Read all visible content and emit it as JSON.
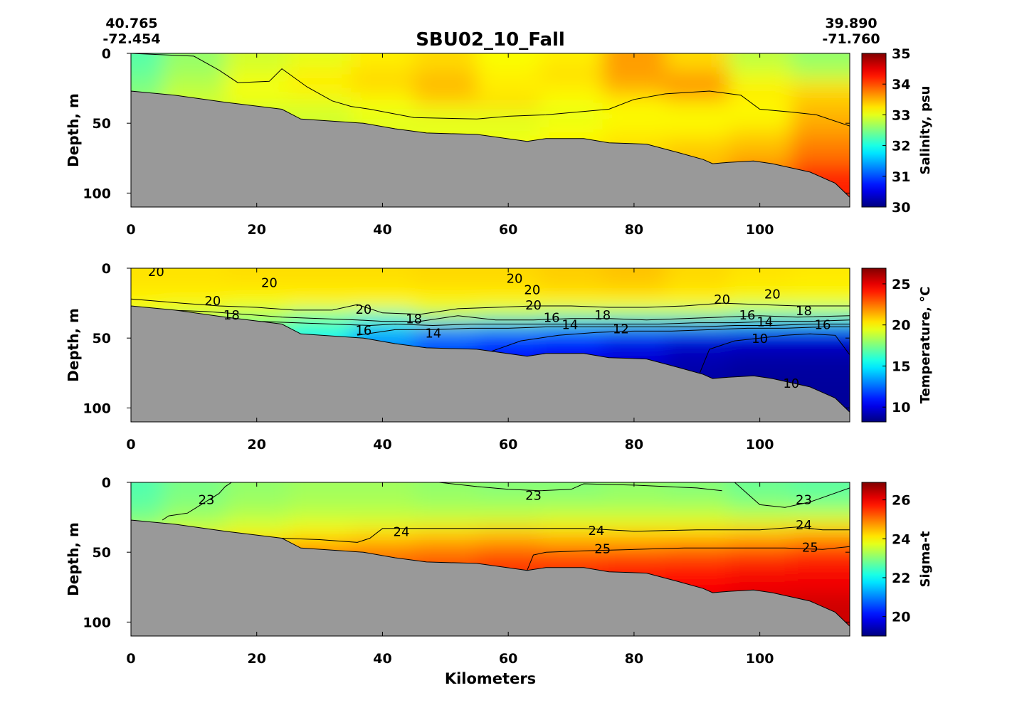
{
  "chart_data": {
    "type": "heatmap",
    "title": "SBU02_10_Fall",
    "start_coord": {
      "lat": "40.765",
      "lon": "-72.454"
    },
    "end_coord": {
      "lat": "39.890",
      "lon": "-71.760"
    },
    "xlabel": "Kilometers",
    "xlim": [
      0,
      114.3
    ],
    "x_ticks": [
      "0",
      "20",
      "40",
      "60",
      "80",
      "100"
    ],
    "bathymetry": {
      "x_km": [
        0,
        7,
        15,
        24,
        27,
        37,
        42,
        47,
        55,
        63,
        66,
        72,
        76,
        82,
        87,
        91,
        92.5,
        95,
        99,
        102,
        108,
        112,
        114.3
      ],
      "depth_m": [
        27,
        30,
        35,
        40,
        47,
        50,
        54,
        57,
        58,
        63,
        61,
        61,
        64,
        65,
        71,
        76,
        79,
        78,
        77,
        79,
        85,
        93,
        103
      ]
    },
    "grid_x_km": [
      0,
      10,
      20,
      30,
      40,
      50,
      60,
      70,
      80,
      90,
      100,
      110
    ],
    "grid_depth_m": [
      5,
      15,
      25,
      35,
      45,
      55,
      70,
      90
    ],
    "panels": [
      {
        "ylabel": "Depth, m",
        "ylim": [
          0,
          110
        ],
        "y_ticks": [
          "0",
          "50",
          "100"
        ],
        "colorbar_label": "Salinity, psu",
        "clim": [
          30,
          35
        ],
        "colorbar_ticks": [
          "30",
          "31",
          "32",
          "33",
          "34",
          "35"
        ],
        "field": [
          [
            32.3,
            32.6,
            32.9,
            33.0,
            33.2,
            33.3,
            33.1,
            33.2,
            33.6,
            33.3,
            32.8,
            32.6
          ],
          [
            32.4,
            32.7,
            33.0,
            33.2,
            33.3,
            33.4,
            33.2,
            33.3,
            33.6,
            33.5,
            33.0,
            32.8
          ],
          [
            32.5,
            32.8,
            33.1,
            33.2,
            33.3,
            33.5,
            33.2,
            33.2,
            33.5,
            33.7,
            33.2,
            33.3
          ],
          [
            32.6,
            32.9,
            33.0,
            33.0,
            33.1,
            33.3,
            33.3,
            33.1,
            33.2,
            33.3,
            33.2,
            33.4
          ],
          [
            32.7,
            32.9,
            32.9,
            32.9,
            33.0,
            33.0,
            33.0,
            33.0,
            33.1,
            33.1,
            33.1,
            33.5
          ],
          [
            32.8,
            32.9,
            32.9,
            32.9,
            33.0,
            33.0,
            33.0,
            33.1,
            33.2,
            33.2,
            33.3,
            33.6
          ],
          [
            32.9,
            33.0,
            33.0,
            33.0,
            33.0,
            33.1,
            33.1,
            33.2,
            33.3,
            33.4,
            33.5,
            33.8
          ],
          [
            33.0,
            33.0,
            33.0,
            33.0,
            33.1,
            33.2,
            33.3,
            33.3,
            33.4,
            33.5,
            33.8,
            34.2
          ]
        ],
        "contour_labels": [],
        "contours": [
          {
            "x": [
              0,
              10,
              14,
              17,
              22,
              24,
              28,
              32,
              35,
              38,
              45,
              55,
              60,
              66,
              76,
              80,
              85,
              92,
              97,
              100,
              105,
              109,
              114.3
            ],
            "d": [
              0,
              2,
              12,
              21,
              20,
              11,
              24,
              34,
              38,
              40,
              46,
              47,
              45,
              44,
              40,
              33,
              29,
              27,
              30,
              40,
              42,
              44,
              52
            ]
          }
        ]
      },
      {
        "ylabel": "Depth, m",
        "ylim": [
          0,
          110
        ],
        "y_ticks": [
          "0",
          "50",
          "100"
        ],
        "colorbar_label": "Temperature, °C",
        "clim": [
          8.2,
          26.9
        ],
        "colorbar_tick_values": [
          10,
          15,
          20,
          25
        ],
        "colorbar_ticks": [
          "10",
          "15",
          "20",
          "25"
        ],
        "field": [
          [
            20.4,
            20.4,
            20.5,
            20.5,
            20.5,
            20.6,
            20.6,
            20.8,
            21.0,
            20.6,
            20.4,
            20.3
          ],
          [
            20.3,
            20.3,
            20.3,
            20.3,
            20.3,
            20.4,
            20.4,
            20.6,
            20.7,
            20.4,
            20.2,
            20.1
          ],
          [
            20.0,
            20.0,
            19.8,
            20.0,
            20.0,
            20.0,
            20.0,
            20.0,
            20.0,
            20.0,
            19.5,
            19.5
          ],
          [
            19.0,
            18.5,
            18.0,
            17.0,
            16.5,
            18.0,
            17.5,
            17.0,
            17.0,
            17.0,
            16.5,
            16.5
          ],
          [
            18.0,
            17.5,
            17.0,
            16.0,
            14.0,
            13.0,
            12.8,
            12.5,
            12.0,
            11.5,
            11.0,
            11.0
          ],
          [
            17.5,
            17.0,
            16.5,
            15.0,
            13.0,
            12.0,
            11.0,
            10.5,
            10.0,
            9.5,
            9.3,
            9.3
          ],
          [
            17.0,
            16.5,
            16.0,
            14.5,
            12.5,
            11.5,
            10.8,
            10.2,
            9.7,
            9.0,
            8.8,
            8.8
          ],
          [
            16.5,
            16.0,
            15.5,
            14.0,
            12.0,
            11.0,
            10.5,
            10.0,
            9.5,
            8.8,
            8.6,
            8.7
          ]
        ],
        "contour_labels": [
          {
            "text": "20",
            "x": 4,
            "d": 2
          },
          {
            "text": "20",
            "x": 22,
            "d": 10
          },
          {
            "text": "20",
            "x": 13,
            "d": 23
          },
          {
            "text": "18",
            "x": 16,
            "d": 33
          },
          {
            "text": "20",
            "x": 37,
            "d": 29
          },
          {
            "text": "16",
            "x": 37,
            "d": 44
          },
          {
            "text": "18",
            "x": 45,
            "d": 36
          },
          {
            "text": "14",
            "x": 44,
            "d": 46
          },
          {
            "text": "20",
            "x": 61,
            "d": 7
          },
          {
            "text": "20",
            "x": 62,
            "d": 15
          },
          {
            "text": "20",
            "x": 64,
            "d": 26
          },
          {
            "text": "16",
            "x": 66,
            "d": 35
          },
          {
            "text": "14",
            "x": 68,
            "d": 40
          },
          {
            "text": "18",
            "x": 75,
            "d": 33
          },
          {
            "text": "12",
            "x": 77,
            "d": 43
          },
          {
            "text": "20",
            "x": 94,
            "d": 22
          },
          {
            "text": "20",
            "x": 102,
            "d": 18
          },
          {
            "text": "16",
            "x": 98,
            "d": 33
          },
          {
            "text": "14",
            "x": 99,
            "d": 38
          },
          {
            "text": "18",
            "x": 107,
            "d": 30
          },
          {
            "text": "16",
            "x": 110,
            "d": 40
          },
          {
            "text": "10",
            "x": 100,
            "d": 50
          },
          {
            "text": "10",
            "x": 105,
            "d": 82
          }
        ],
        "contours": [
          {
            "x": [
              0,
              8,
              14,
              20,
              26,
              32,
              36,
              40,
              46,
              52,
              58,
              64,
              70,
              76,
              82,
              88,
              94,
              100,
              106,
              114.3
            ],
            "d": [
              22,
              25,
              27,
              28,
              30,
              30,
              26,
              32,
              33,
              29,
              28,
              27,
              27,
              28,
              28,
              27,
              25,
              26,
              27,
              27
            ]
          },
          {
            "x": [
              6,
              12,
              18,
              24,
              30,
              36,
              40,
              46,
              52,
              58,
              64,
              70,
              76,
              82,
              88,
              94,
              100,
              106,
              114.3
            ],
            "d": [
              30,
              31,
              33,
              35,
              36,
              37,
              38,
              38,
              34,
              37,
              37,
              36,
              36,
              37,
              36,
              35,
              34,
              35,
              34
            ]
          },
          {
            "x": [
              14,
              20,
              26,
              32,
              38,
              42,
              48,
              54,
              60,
              66,
              72,
              78,
              84,
              90,
              96,
              102,
              108,
              114.3
            ],
            "d": [
              36,
              38,
              39,
              40,
              41,
              40,
              41,
              40,
              40,
              40,
              40,
              40,
              40,
              39,
              39,
              38,
              38,
              37
            ]
          },
          {
            "x": [
              36,
              42,
              48,
              54,
              60,
              66,
              72,
              78,
              84,
              90,
              96,
              102,
              108,
              114.3
            ],
            "d": [
              48,
              44,
              44,
              43,
              43,
              42,
              42,
              42,
              42,
              42,
              41,
              41,
              40,
              40
            ]
          },
          {
            "x": [
              57,
              62,
              68,
              74,
              80,
              86,
              92,
              98,
              104,
              110,
              114.3
            ],
            "d": [
              60,
              52,
              48,
              46,
              45,
              45,
              44,
              43,
              43,
              42,
              42
            ]
          },
          {
            "x": [
              90,
              92,
              96,
              100,
              104,
              108,
              112,
              114.3
            ],
            "d": [
              80,
              58,
              52,
              50,
              48,
              47,
              48,
              62
            ]
          }
        ]
      },
      {
        "ylabel": "Depth, m",
        "ylim": [
          0,
          110
        ],
        "y_ticks": [
          "0",
          "50",
          "100"
        ],
        "colorbar_label": "Sigma-t",
        "clim": [
          19.0,
          26.9
        ],
        "colorbar_tick_values": [
          20,
          22,
          24,
          26
        ],
        "colorbar_ticks": [
          "20",
          "22",
          "24",
          "26"
        ],
        "field": [
          [
            22.6,
            22.9,
            23.1,
            23.2,
            23.2,
            23.1,
            23.0,
            23.0,
            23.1,
            23.0,
            22.8,
            22.7
          ],
          [
            22.7,
            23.0,
            23.2,
            23.3,
            23.3,
            23.2,
            23.2,
            23.2,
            23.2,
            23.2,
            23.0,
            22.9
          ],
          [
            22.9,
            23.2,
            23.4,
            23.5,
            23.5,
            23.5,
            23.5,
            23.6,
            23.6,
            23.6,
            23.5,
            23.6
          ],
          [
            23.3,
            23.6,
            23.8,
            24.0,
            24.1,
            24.2,
            24.3,
            24.2,
            24.2,
            24.2,
            24.3,
            24.4
          ],
          [
            24.0,
            24.2,
            24.4,
            24.6,
            24.7,
            24.8,
            24.9,
            24.8,
            24.8,
            24.9,
            25.0,
            25.2
          ],
          [
            24.4,
            24.6,
            24.8,
            25.0,
            25.1,
            25.2,
            25.4,
            25.4,
            25.5,
            25.5,
            25.6,
            25.7
          ],
          [
            24.8,
            25.0,
            25.2,
            25.3,
            25.4,
            25.5,
            25.6,
            25.7,
            25.8,
            25.9,
            26.0,
            26.0
          ],
          [
            25.0,
            25.2,
            25.4,
            25.5,
            25.6,
            25.7,
            25.8,
            25.9,
            26.0,
            26.1,
            26.2,
            26.3
          ]
        ],
        "contour_labels": [
          {
            "text": "23",
            "x": 12,
            "d": 12
          },
          {
            "text": "23",
            "x": 64,
            "d": 9
          },
          {
            "text": "23",
            "x": 107,
            "d": 12
          },
          {
            "text": "24",
            "x": 43,
            "d": 35
          },
          {
            "text": "24",
            "x": 74,
            "d": 34
          },
          {
            "text": "24",
            "x": 107,
            "d": 30
          },
          {
            "text": "25",
            "x": 75,
            "d": 47
          },
          {
            "text": "25",
            "x": 108,
            "d": 46
          }
        ],
        "contours": [
          {
            "x": [
              5,
              6,
              9,
              14,
              15,
              16
            ],
            "d": [
              27,
              24,
              22,
              8,
              3,
              0
            ]
          },
          {
            "x": [
              49,
              55,
              60,
              65,
              70,
              72,
              80,
              90,
              94
            ],
            "d": [
              0,
              3,
              5,
              6,
              5,
              1,
              2,
              4,
              6
            ]
          },
          {
            "x": [
              96,
              98,
              100,
              104,
              108,
              114.3
            ],
            "d": [
              0,
              8,
              16,
              18,
              14,
              4
            ]
          },
          {
            "x": [
              24,
              30,
              36,
              38,
              40,
              44,
              50,
              58,
              66,
              72,
              80,
              90,
              100,
              106,
              110,
              114.3
            ],
            "d": [
              40,
              41,
              43,
              40,
              33,
              33,
              33,
              33,
              33,
              33,
              35,
              34,
              34,
              32,
              34,
              34
            ]
          },
          {
            "x": [
              63,
              64,
              66,
              72,
              80,
              88,
              96,
              104,
              110,
              114.3
            ],
            "d": [
              63,
              52,
              50,
              49,
              48,
              47,
              47,
              47,
              48,
              46
            ]
          }
        ]
      }
    ]
  }
}
